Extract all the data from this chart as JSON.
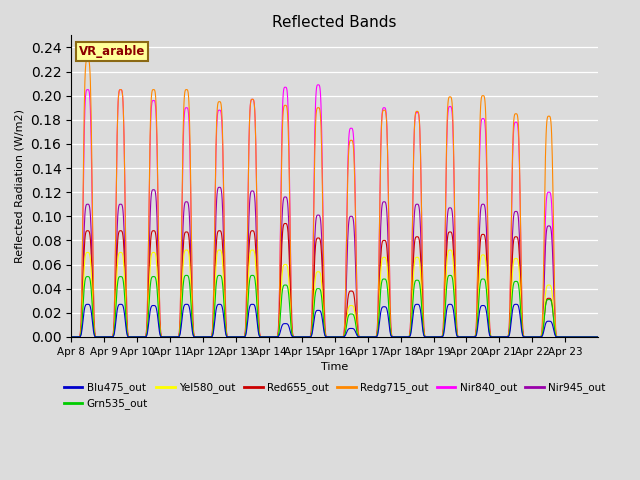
{
  "title": "Reflected Bands",
  "xlabel": "Time",
  "ylabel": "Reflected Radiation (W/m2)",
  "ylim": [
    0.0,
    0.25
  ],
  "annotation": "VR_arable",
  "background_color": "#dcdcdc",
  "axes_bg_color": "#dcdcdc",
  "legend_entries": [
    "Blu475_out",
    "Grn535_out",
    "Yel580_out",
    "Red655_out",
    "Redg715_out",
    "Nir840_out",
    "Nir945_out"
  ],
  "line_colors": {
    "Blu475_out": "#0000cc",
    "Grn535_out": "#00cc00",
    "Yel580_out": "#ffff00",
    "Red655_out": "#cc0000",
    "Redg715_out": "#ff8800",
    "Nir840_out": "#ff00ff",
    "Nir945_out": "#9900aa"
  },
  "num_days": 16,
  "samples_per_day": 96,
  "day_peaks": {
    "Blu475_out": [
      0.027,
      0.027,
      0.026,
      0.027,
      0.027,
      0.027,
      0.011,
      0.022,
      0.007,
      0.025,
      0.027,
      0.027,
      0.026,
      0.027,
      0.013,
      0.0
    ],
    "Grn535_out": [
      0.05,
      0.05,
      0.05,
      0.051,
      0.051,
      0.051,
      0.043,
      0.04,
      0.019,
      0.048,
      0.047,
      0.051,
      0.048,
      0.046,
      0.031,
      0.0
    ],
    "Yel580_out": [
      0.07,
      0.07,
      0.07,
      0.072,
      0.072,
      0.072,
      0.06,
      0.054,
      0.026,
      0.066,
      0.066,
      0.072,
      0.068,
      0.065,
      0.043,
      0.0
    ],
    "Red655_out": [
      0.088,
      0.088,
      0.088,
      0.087,
      0.088,
      0.088,
      0.094,
      0.082,
      0.038,
      0.08,
      0.083,
      0.087,
      0.085,
      0.083,
      0.032,
      0.0
    ],
    "Redg715_out": [
      0.23,
      0.205,
      0.205,
      0.205,
      0.195,
      0.197,
      0.192,
      0.19,
      0.163,
      0.188,
      0.187,
      0.199,
      0.2,
      0.185,
      0.183,
      0.0
    ],
    "Nir840_out": [
      0.205,
      0.205,
      0.196,
      0.19,
      0.188,
      0.197,
      0.207,
      0.209,
      0.173,
      0.19,
      0.186,
      0.191,
      0.181,
      0.178,
      0.12,
      0.0
    ],
    "Nir945_out": [
      0.11,
      0.11,
      0.122,
      0.112,
      0.124,
      0.121,
      0.116,
      0.101,
      0.1,
      0.112,
      0.11,
      0.107,
      0.11,
      0.104,
      0.092,
      0.0
    ]
  },
  "x_tick_labels": [
    "Apr 8",
    "Apr 9",
    "Apr 10",
    "Apr 11",
    "Apr 12",
    "Apr 13",
    "Apr 14",
    "Apr 15",
    "Apr 16",
    "Apr 17",
    "Apr 18",
    "Apr 19",
    "Apr 20",
    "Apr 21",
    "Apr 22",
    "Apr 23"
  ],
  "x_tick_positions": [
    0,
    96,
    192,
    288,
    384,
    480,
    576,
    672,
    768,
    864,
    960,
    1056,
    1152,
    1248,
    1344,
    1440
  ]
}
